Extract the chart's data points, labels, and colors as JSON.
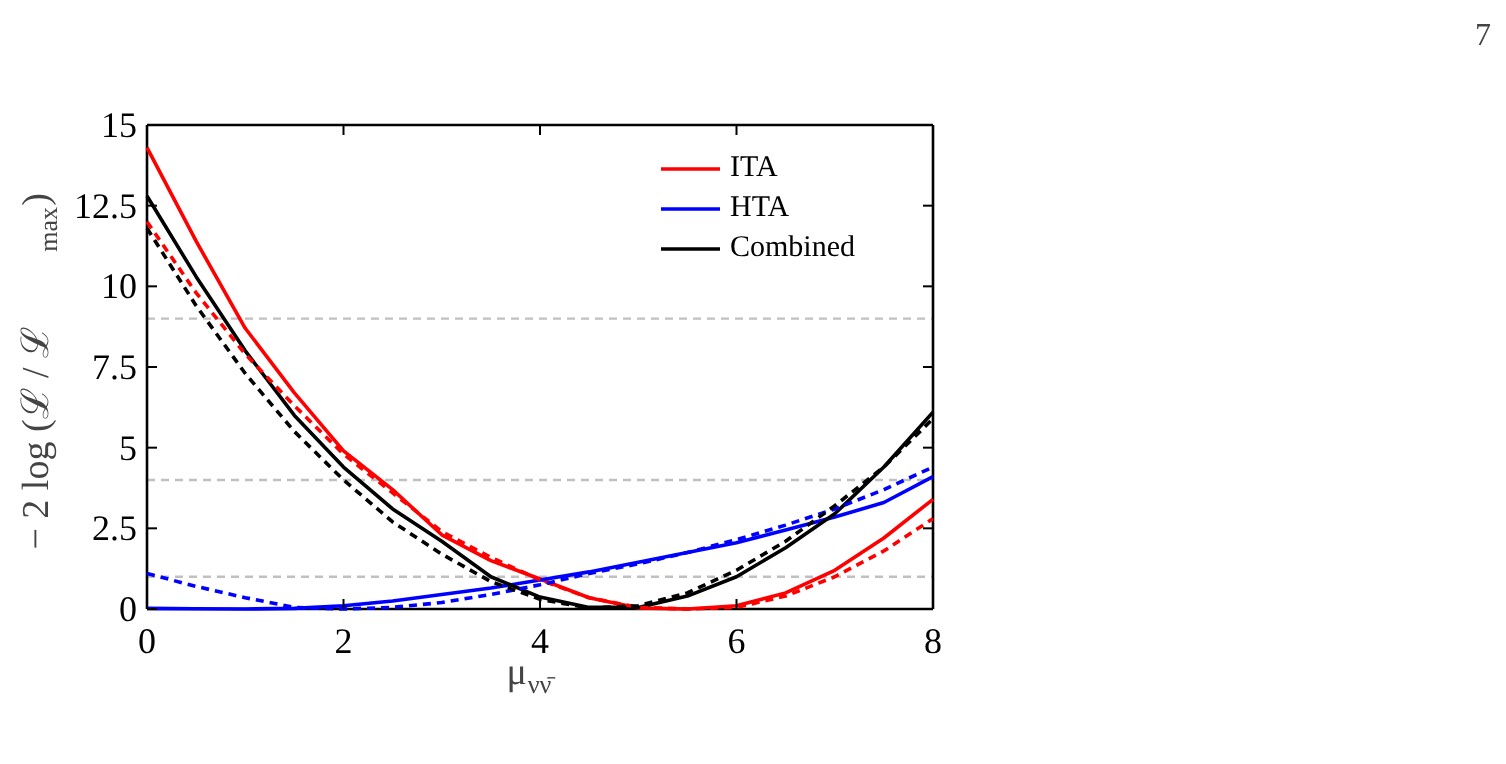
{
  "chart_data": {
    "type": "line",
    "xlabel": "μ$_{νν̄}$",
    "ylabel": "− 2 log (ℒ / ℒ$_{max}$)",
    "x": [
      0,
      0.5,
      1,
      1.5,
      2,
      2.5,
      3,
      3.5,
      4,
      4.5,
      5,
      5.5,
      6,
      6.5,
      7,
      7.5,
      8
    ],
    "xlim": [
      0,
      8
    ],
    "xticks": [
      0,
      2,
      4,
      6,
      8
    ],
    "ylim": [
      0,
      15
    ],
    "yticks": [
      0,
      2.5,
      5,
      7.5,
      10,
      12.5,
      15
    ],
    "grid": false,
    "legend": "top right",
    "marker": "none",
    "series": [
      {
        "name": "ITA",
        "color": "#ff0000",
        "line_style": "solid",
        "values": [
          14.3,
          11.4,
          8.7,
          6.7,
          4.9,
          3.7,
          2.3,
          1.5,
          0.93,
          0.35,
          0.03,
          0,
          0.1,
          0.5,
          1.2,
          2.2,
          3.4
        ]
      },
      {
        "name": "HTA",
        "color": "#0000ff",
        "line_style": "solid",
        "values": [
          0.02,
          0.01,
          0,
          0.02,
          0.1,
          0.25,
          0.45,
          0.65,
          0.9,
          1.15,
          1.45,
          1.75,
          2.05,
          2.45,
          2.85,
          3.3,
          4.1
        ]
      },
      {
        "name": "Combined",
        "color": "#000000",
        "line_style": "solid",
        "values": [
          12.8,
          10.3,
          8.0,
          6.0,
          4.4,
          3.1,
          2.1,
          1.0,
          0.37,
          0.05,
          0.05,
          0.4,
          1.0,
          1.9,
          2.95,
          4.4,
          6.1
        ]
      },
      {
        "color": "#ff0000",
        "line_style": "dashed",
        "values": [
          12.0,
          9.8,
          7.9,
          6.3,
          4.8,
          3.6,
          2.4,
          1.6,
          0.9,
          0.35,
          0.05,
          0,
          0.05,
          0.4,
          1.0,
          1.8,
          2.8
        ]
      },
      {
        "color": "#0000ff",
        "line_style": "dashed",
        "values": [
          1.1,
          0.7,
          0.35,
          0.05,
          0,
          0.05,
          0.2,
          0.45,
          0.75,
          1.1,
          1.4,
          1.75,
          2.15,
          2.6,
          3.1,
          3.7,
          4.4
        ]
      },
      {
        "color": "#000000",
        "line_style": "dashed",
        "values": [
          11.8,
          9.4,
          7.3,
          5.5,
          4.0,
          2.7,
          1.7,
          0.85,
          0.3,
          0.03,
          0.1,
          0.5,
          1.2,
          2.1,
          3.2,
          4.4,
          5.9
        ]
      }
    ],
    "ref_lines": [
      {
        "axis": "y",
        "value": 1,
        "color": "#c0c0c0",
        "line_style": "dashed"
      },
      {
        "axis": "y",
        "value": 4,
        "color": "#c0c0c0",
        "line_style": "dashed"
      },
      {
        "axis": "y",
        "value": 9,
        "color": "#c0c0c0",
        "line_style": "dashed"
      }
    ],
    "annotations": [
      "7"
    ]
  }
}
